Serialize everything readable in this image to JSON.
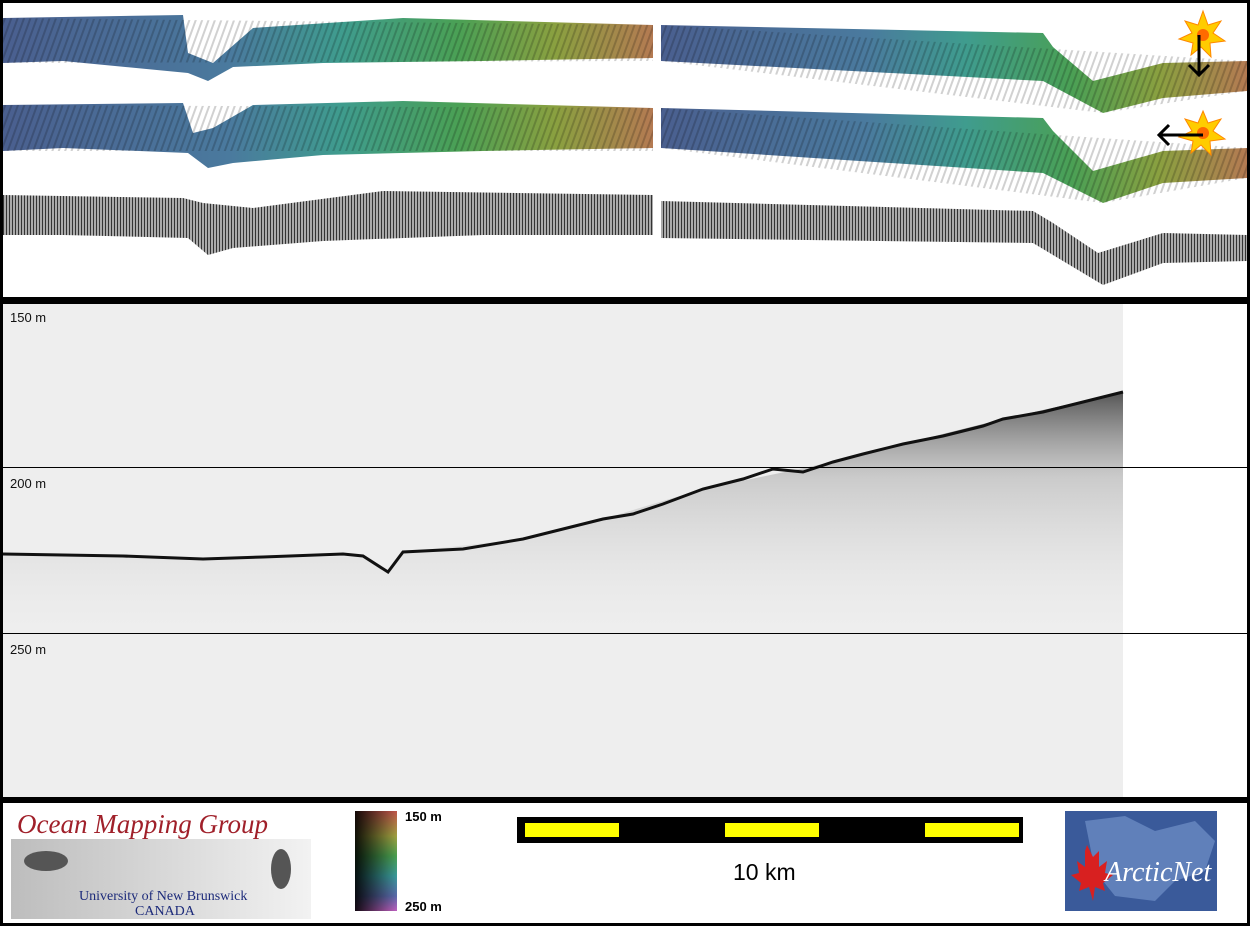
{
  "profile": {
    "depth_labels": [
      "150 m",
      "200 m",
      "250 m"
    ]
  },
  "footer": {
    "ocean_mapping_title": "Ocean Mapping Group",
    "university": "University of New Brunswick",
    "country": "CANADA",
    "colorbar_top": "150 m",
    "colorbar_bottom": "250 m",
    "scale_label": "10 km",
    "logo_text": "ArcticNet"
  },
  "colors": {
    "swath_start": "#4a6a9a",
    "swath_mid": "#3a9a8a",
    "swath_green": "#4aa050",
    "swath_end": "#b07050",
    "scale_yellow": "#ffff00",
    "omg_red": "#a0202a",
    "arctic_blue": "#2a4a8a"
  },
  "icons": {
    "sun_marker_1": "sun-icon",
    "arrow_down": "arrow-down-icon",
    "sun_marker_2": "sun-icon",
    "arrow_left": "arrow-left-icon"
  }
}
